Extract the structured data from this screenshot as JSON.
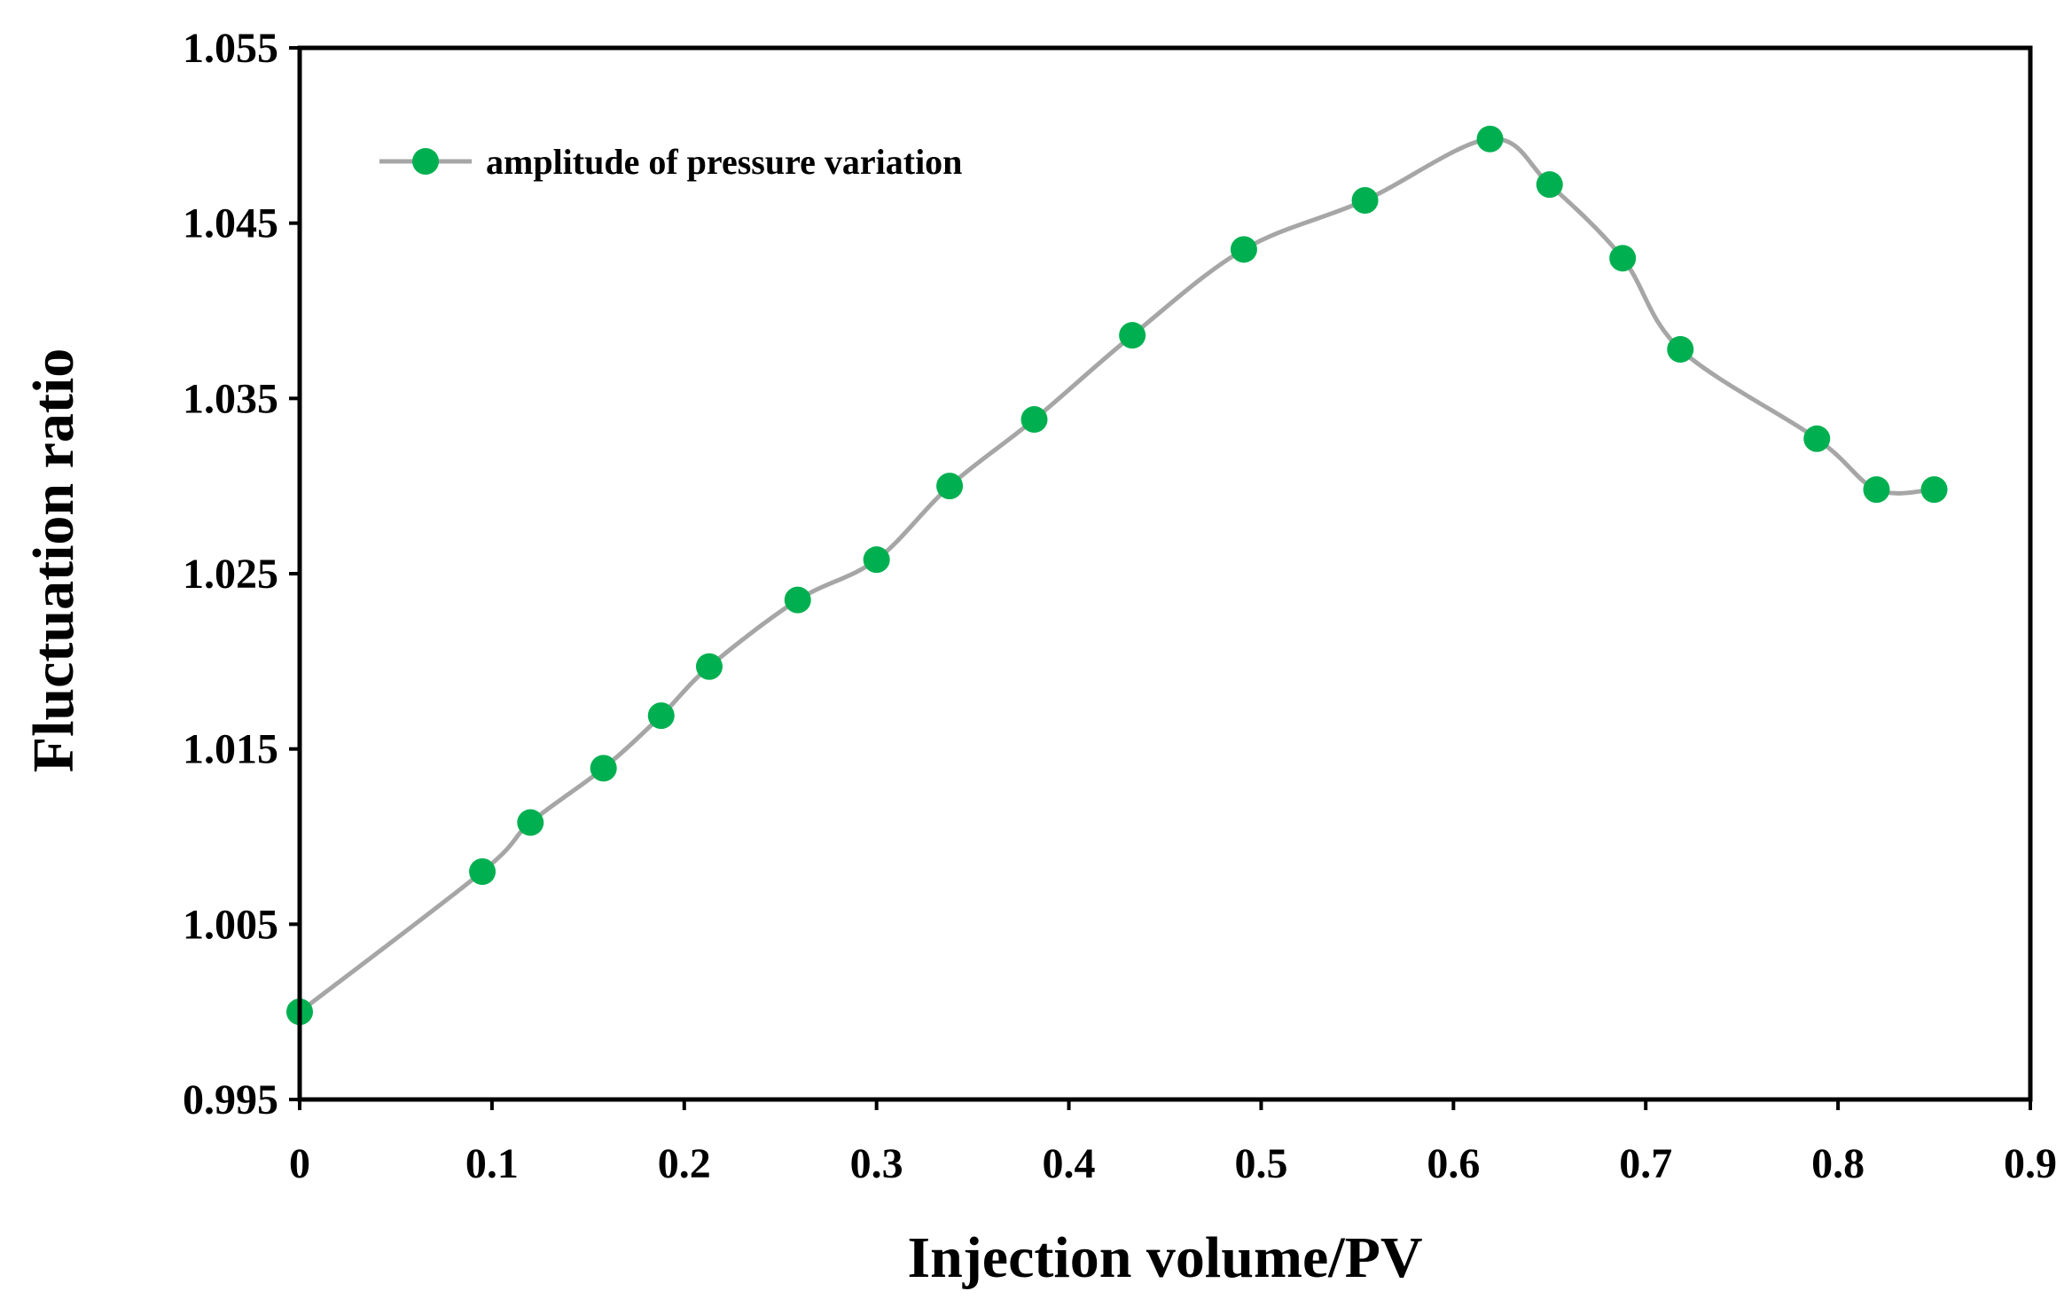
{
  "chart_data": {
    "type": "line",
    "title": "",
    "xlabel": "Injection volume/PV",
    "ylabel": "Fluctuation ratio",
    "xlim": [
      0,
      0.9
    ],
    "ylim": [
      0.995,
      1.055
    ],
    "x_ticks": [
      "0",
      "0.1",
      "0.2",
      "0.3",
      "0.4",
      "0.5",
      "0.6",
      "0.7",
      "0.8",
      "0.9"
    ],
    "y_ticks": [
      "0.995",
      "1.005",
      "1.015",
      "1.025",
      "1.035",
      "1.045",
      "1.055"
    ],
    "x_tick_values": [
      0,
      0.1,
      0.2,
      0.3,
      0.4,
      0.5,
      0.6,
      0.7,
      0.8,
      0.9
    ],
    "y_tick_values": [
      0.995,
      1.005,
      1.015,
      1.025,
      1.035,
      1.045,
      1.055
    ],
    "grid": false,
    "legend_position": "top-left",
    "series": [
      {
        "name": "amplitude of pressure variation",
        "line_color": "#a6a6a6",
        "marker_color": "#00b050",
        "smooth": true,
        "x": [
          0,
          0.095,
          0.12,
          0.158,
          0.188,
          0.213,
          0.259,
          0.3,
          0.338,
          0.382,
          0.433,
          0.491,
          0.554,
          0.619,
          0.65,
          0.688,
          0.718,
          0.789,
          0.82,
          0.85
        ],
        "y": [
          1.0,
          1.008,
          1.0108,
          1.0139,
          1.0169,
          1.0197,
          1.0235,
          1.0258,
          1.03,
          1.0338,
          1.0386,
          1.0435,
          1.0463,
          1.0498,
          1.0472,
          1.043,
          1.0378,
          1.0327,
          1.0298,
          1.0298
        ]
      }
    ]
  }
}
